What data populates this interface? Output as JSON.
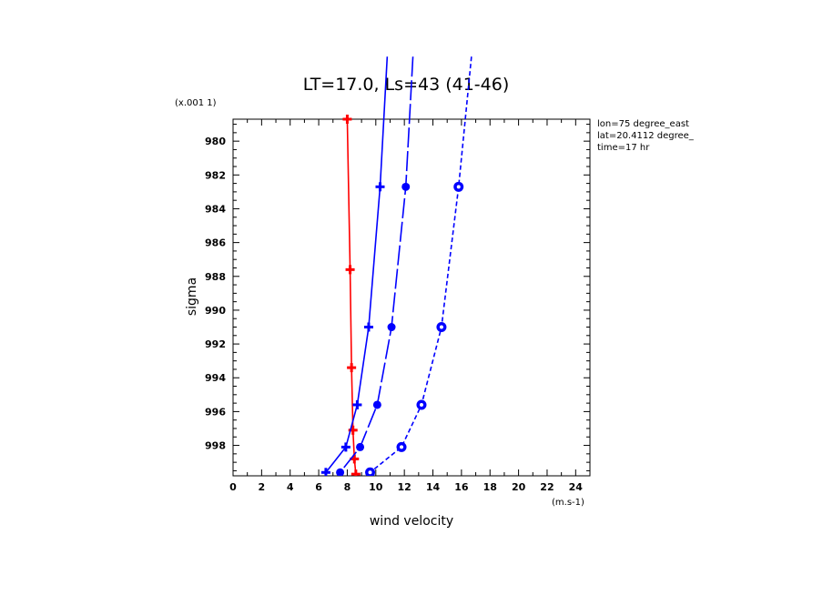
{
  "chart_data": {
    "type": "line",
    "title": "LT=17.0, Ls=43 (41-46)",
    "xlabel": "wind velocity",
    "ylabel": "sigma",
    "x_unit_label": "(m.s-1)",
    "y_unit_label": "(x.001 1)",
    "xlim": [
      0,
      25
    ],
    "ylim": [
      999.8,
      978.7
    ],
    "x_ticks": [
      "0",
      "2",
      "4",
      "6",
      "8",
      "10",
      "12",
      "14",
      "16",
      "18",
      "20",
      "22",
      "24"
    ],
    "y_ticks": [
      "980",
      "982",
      "984",
      "986",
      "988",
      "990",
      "992",
      "994",
      "996",
      "998"
    ],
    "annotations": [
      "lon=75 degree_east",
      "lat=20.4112 degree_",
      "time=17 hr"
    ],
    "series": [
      {
        "color": "#ff0000",
        "line_style": "solid",
        "marker": "plus",
        "points": [
          {
            "x": 8.0,
            "y": 978.7
          },
          {
            "x": 8.2,
            "y": 987.6
          },
          {
            "x": 8.3,
            "y": 993.4
          },
          {
            "x": 8.4,
            "y": 997.1
          },
          {
            "x": 8.5,
            "y": 998.8
          },
          {
            "x": 8.6,
            "y": 999.7
          }
        ]
      },
      {
        "color": "#0000ff",
        "line_style": "solid",
        "marker": "plus",
        "points": [
          {
            "x": 10.8,
            "y": 975.0
          },
          {
            "x": 10.3,
            "y": 982.7
          },
          {
            "x": 9.5,
            "y": 991.0
          },
          {
            "x": 8.7,
            "y": 995.6
          },
          {
            "x": 7.9,
            "y": 998.1
          },
          {
            "x": 6.5,
            "y": 999.6
          }
        ]
      },
      {
        "color": "#0000ff",
        "line_style": "long-dash",
        "marker": "dot",
        "points": [
          {
            "x": 12.6,
            "y": 975.0
          },
          {
            "x": 12.1,
            "y": 982.7
          },
          {
            "x": 11.1,
            "y": 991.0
          },
          {
            "x": 10.1,
            "y": 995.6
          },
          {
            "x": 8.9,
            "y": 998.1
          },
          {
            "x": 7.5,
            "y": 999.6
          }
        ]
      },
      {
        "color": "#0000ff",
        "line_style": "short-dash",
        "marker": "circle",
        "points": [
          {
            "x": 16.7,
            "y": 975.0
          },
          {
            "x": 15.8,
            "y": 982.7
          },
          {
            "x": 14.6,
            "y": 991.0
          },
          {
            "x": 13.2,
            "y": 995.6
          },
          {
            "x": 11.8,
            "y": 998.1
          },
          {
            "x": 9.6,
            "y": 999.6
          }
        ]
      }
    ]
  }
}
